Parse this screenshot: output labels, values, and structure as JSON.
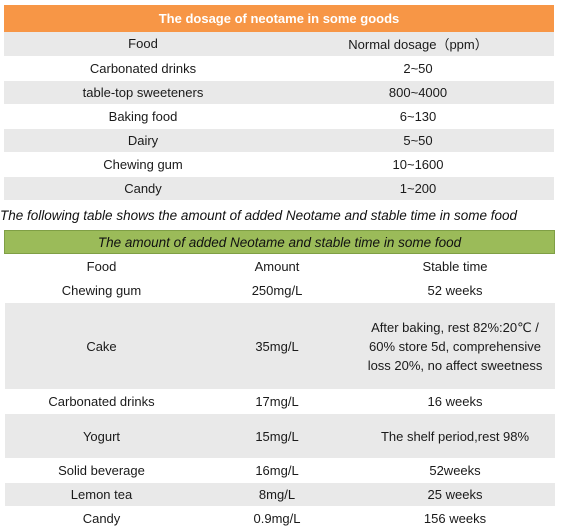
{
  "table1": {
    "title": "The dosage of neotame in some goods",
    "headers": [
      "Food",
      "Normal dosage（ppm）"
    ],
    "rows": [
      {
        "food": "Carbonated drinks",
        "dosage": "2~50"
      },
      {
        "food": "table-top sweeteners",
        "dosage": "800~4000"
      },
      {
        "food": "Baking food",
        "dosage": "6~130"
      },
      {
        "food": "Dairy",
        "dosage": "5~50"
      },
      {
        "food": "Chewing gum",
        "dosage": "10~1600"
      },
      {
        "food": "Candy",
        "dosage": "1~200"
      }
    ]
  },
  "caption": "The following table shows the amount of added Neotame and stable time in some food",
  "table2": {
    "title": "The amount of added Neotame and stable time in some food",
    "headers": [
      "Food",
      "Amount",
      "Stable time"
    ],
    "rows": [
      {
        "food": "Chewing gum",
        "amount": "250mg/L",
        "stable": "52 weeks"
      },
      {
        "food": "Cake",
        "amount": "35mg/L",
        "stable_lines": [
          "After baking, rest 82%:20℃ /",
          "60% store 5d, comprehensive",
          "loss 20%, no affect sweetness"
        ]
      },
      {
        "food": "Carbonated drinks",
        "amount": "17mg/L",
        "stable": "16 weeks"
      },
      {
        "food": "Yogurt",
        "amount": "15mg/L",
        "stable": "The shelf period,rest 98%"
      },
      {
        "food": "Solid beverage",
        "amount": "16mg/L",
        "stable": "52weeks"
      },
      {
        "food": "Lemon tea",
        "amount": "8mg/L",
        "stable": "25 weeks"
      },
      {
        "food": "Candy",
        "amount": "0.9mg/L",
        "stable": "156 weeks"
      }
    ]
  }
}
